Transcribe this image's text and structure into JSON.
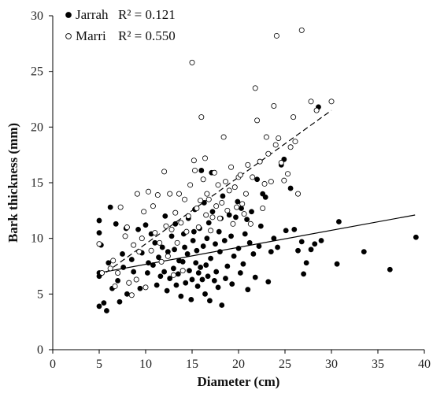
{
  "chart_data": {
    "type": "scatter",
    "xlabel": "Diameter (cm)",
    "ylabel": "Bark thickness (mm)",
    "xlim": [
      0,
      40
    ],
    "ylim": [
      0,
      30
    ],
    "xticks": [
      0,
      5,
      10,
      15,
      20,
      25,
      30,
      35,
      40
    ],
    "yticks": [
      0,
      5,
      10,
      15,
      20,
      25,
      30
    ],
    "grid": false,
    "legend_position": "top-left",
    "series": [
      {
        "name": "Jarrah",
        "r2_label": "R² = 0.121",
        "marker": "filled-circle",
        "color": "#000000",
        "trendline": {
          "style": "solid",
          "x": [
            5,
            39
          ],
          "y": [
            6.9,
            12.1
          ]
        },
        "points": [
          [
            5.0,
            3.9
          ],
          [
            5.0,
            6.6
          ],
          [
            5.0,
            6.9
          ],
          [
            5.2,
            9.4
          ],
          [
            5.0,
            10.5
          ],
          [
            5.0,
            11.6
          ],
          [
            5.5,
            4.2
          ],
          [
            5.8,
            3.5
          ],
          [
            6.0,
            7.8
          ],
          [
            6.2,
            12.8
          ],
          [
            6.4,
            5.5
          ],
          [
            6.8,
            11.3
          ],
          [
            7.0,
            6.2
          ],
          [
            7.2,
            4.3
          ],
          [
            7.5,
            8.6
          ],
          [
            7.6,
            7.4
          ],
          [
            7.9,
            10.9
          ],
          [
            8.0,
            5.0
          ],
          [
            8.2,
            6.0
          ],
          [
            8.5,
            8.1
          ],
          [
            8.7,
            7.0
          ],
          [
            9.0,
            6.3
          ],
          [
            9.2,
            10.8
          ],
          [
            9.4,
            5.5
          ],
          [
            9.6,
            8.7
          ],
          [
            10.0,
            11.2
          ],
          [
            10.2,
            6.9
          ],
          [
            10.3,
            7.8
          ],
          [
            10.6,
            10.4
          ],
          [
            10.8,
            7.6
          ],
          [
            11.0,
            9.6
          ],
          [
            11.2,
            5.8
          ],
          [
            11.4,
            8.3
          ],
          [
            11.6,
            6.6
          ],
          [
            11.8,
            9.2
          ],
          [
            12.0,
            7.0
          ],
          [
            12.1,
            12.0
          ],
          [
            12.3,
            5.3
          ],
          [
            12.4,
            8.8
          ],
          [
            12.6,
            6.4
          ],
          [
            12.8,
            10.2
          ],
          [
            13.0,
            7.3
          ],
          [
            13.1,
            9.0
          ],
          [
            13.2,
            11.3
          ],
          [
            13.3,
            5.8
          ],
          [
            13.5,
            6.8
          ],
          [
            13.6,
            8.0
          ],
          [
            13.8,
            4.8
          ],
          [
            14.0,
            7.9
          ],
          [
            14.1,
            10.4
          ],
          [
            14.2,
            9.2
          ],
          [
            14.3,
            6.0
          ],
          [
            14.5,
            8.6
          ],
          [
            14.6,
            11.8
          ],
          [
            14.7,
            7.1
          ],
          [
            14.9,
            4.5
          ],
          [
            15.0,
            6.3
          ],
          [
            15.1,
            9.8
          ],
          [
            15.2,
            10.6
          ],
          [
            15.3,
            12.6
          ],
          [
            15.4,
            7.8
          ],
          [
            15.5,
            8.9
          ],
          [
            15.6,
            5.7
          ],
          [
            15.7,
            6.9
          ],
          [
            15.8,
            10.9
          ],
          [
            15.9,
            7.4
          ],
          [
            16.0,
            16.1
          ],
          [
            16.1,
            6.3
          ],
          [
            16.2,
            9.3
          ],
          [
            16.3,
            13.2
          ],
          [
            16.4,
            5.0
          ],
          [
            16.5,
            7.6
          ],
          [
            16.6,
            10.0
          ],
          [
            16.7,
            6.6
          ],
          [
            16.8,
            11.4
          ],
          [
            16.9,
            4.4
          ],
          [
            17.0,
            8.2
          ],
          [
            17.1,
            15.9
          ],
          [
            17.2,
            12.4
          ],
          [
            17.4,
            6.2
          ],
          [
            17.5,
            9.5
          ],
          [
            17.6,
            7.0
          ],
          [
            17.8,
            5.6
          ],
          [
            17.9,
            10.6
          ],
          [
            18.0,
            8.8
          ],
          [
            18.1,
            11.8
          ],
          [
            18.2,
            4.0
          ],
          [
            18.3,
            13.8
          ],
          [
            18.5,
            9.8
          ],
          [
            18.6,
            6.4
          ],
          [
            18.8,
            7.5
          ],
          [
            19.0,
            12.1
          ],
          [
            19.2,
            10.2
          ],
          [
            19.3,
            5.9
          ],
          [
            19.5,
            8.4
          ],
          [
            19.7,
            11.9
          ],
          [
            19.9,
            13.3
          ],
          [
            20.0,
            9.1
          ],
          [
            20.2,
            6.9
          ],
          [
            20.3,
            12.7
          ],
          [
            20.5,
            7.7
          ],
          [
            20.7,
            10.4
          ],
          [
            20.9,
            11.7
          ],
          [
            21.0,
            5.4
          ],
          [
            21.2,
            9.6
          ],
          [
            21.4,
            12.4
          ],
          [
            21.6,
            8.6
          ],
          [
            21.8,
            6.5
          ],
          [
            22.0,
            15.3
          ],
          [
            22.2,
            9.3
          ],
          [
            22.4,
            11.1
          ],
          [
            22.6,
            14.0
          ],
          [
            22.9,
            13.7
          ],
          [
            23.2,
            6.1
          ],
          [
            23.5,
            8.8
          ],
          [
            23.8,
            10.0
          ],
          [
            24.2,
            9.2
          ],
          [
            24.6,
            16.6
          ],
          [
            24.9,
            17.1
          ],
          [
            25.1,
            10.7
          ],
          [
            25.6,
            14.5
          ],
          [
            26.0,
            10.8
          ],
          [
            26.4,
            8.9
          ],
          [
            26.8,
            9.7
          ],
          [
            27.0,
            6.8
          ],
          [
            27.3,
            7.8
          ],
          [
            27.8,
            9.0
          ],
          [
            28.2,
            9.5
          ],
          [
            28.6,
            21.8
          ],
          [
            28.9,
            9.8
          ],
          [
            30.6,
            7.7
          ],
          [
            30.8,
            11.5
          ],
          [
            33.5,
            8.8
          ],
          [
            36.3,
            7.2
          ],
          [
            39.1,
            10.1
          ]
        ]
      },
      {
        "name": "Marri",
        "r2_label": "R² = 0.550",
        "marker": "open-circle",
        "color": "#000000",
        "trendline": {
          "style": "dashed",
          "x": [
            5,
            30
          ],
          "y": [
            6.5,
            21.5
          ]
        },
        "points": [
          [
            5.0,
            9.5
          ],
          [
            5.3,
            6.9
          ],
          [
            6.2,
            7.3
          ],
          [
            6.5,
            8.0
          ],
          [
            6.7,
            5.7
          ],
          [
            7.0,
            6.9
          ],
          [
            7.3,
            12.8
          ],
          [
            7.8,
            10.2
          ],
          [
            8.0,
            11.0
          ],
          [
            8.2,
            6.0
          ],
          [
            8.5,
            4.9
          ],
          [
            8.7,
            9.4
          ],
          [
            9.0,
            6.3
          ],
          [
            9.1,
            14.0
          ],
          [
            9.3,
            8.8
          ],
          [
            9.6,
            10.0
          ],
          [
            9.8,
            12.4
          ],
          [
            10.0,
            5.6
          ],
          [
            10.3,
            14.2
          ],
          [
            10.6,
            8.9
          ],
          [
            10.8,
            12.9
          ],
          [
            11.0,
            10.5
          ],
          [
            11.3,
            13.9
          ],
          [
            11.5,
            9.6
          ],
          [
            11.7,
            7.9
          ],
          [
            12.0,
            16.0
          ],
          [
            12.2,
            11.1
          ],
          [
            12.4,
            8.4
          ],
          [
            12.6,
            14.0
          ],
          [
            12.8,
            10.8
          ],
          [
            13.0,
            6.7
          ],
          [
            13.2,
            12.3
          ],
          [
            13.4,
            9.6
          ],
          [
            13.6,
            14.0
          ],
          [
            13.8,
            11.4
          ],
          [
            14.0,
            7.1
          ],
          [
            14.2,
            13.5
          ],
          [
            14.4,
            10.6
          ],
          [
            14.6,
            12.0
          ],
          [
            14.8,
            14.8
          ],
          [
            15.0,
            25.8
          ],
          [
            15.2,
            17.0
          ],
          [
            15.3,
            16.1
          ],
          [
            15.5,
            12.7
          ],
          [
            15.7,
            11.0
          ],
          [
            15.9,
            13.4
          ],
          [
            16.0,
            20.9
          ],
          [
            16.2,
            15.3
          ],
          [
            16.4,
            17.2
          ],
          [
            16.5,
            12.1
          ],
          [
            16.6,
            14.0
          ],
          [
            16.8,
            13.5
          ],
          [
            17.0,
            10.7
          ],
          [
            17.2,
            11.9
          ],
          [
            17.4,
            15.9
          ],
          [
            17.6,
            12.9
          ],
          [
            17.8,
            14.8
          ],
          [
            18.0,
            11.8
          ],
          [
            18.2,
            13.2
          ],
          [
            18.4,
            19.1
          ],
          [
            18.6,
            15.1
          ],
          [
            18.8,
            12.5
          ],
          [
            19.0,
            14.3
          ],
          [
            19.2,
            16.4
          ],
          [
            19.4,
            11.3
          ],
          [
            19.6,
            14.6
          ],
          [
            19.8,
            12.8
          ],
          [
            20.0,
            15.5
          ],
          [
            20.2,
            15.7
          ],
          [
            20.4,
            13.1
          ],
          [
            20.6,
            12.2
          ],
          [
            20.8,
            14.0
          ],
          [
            21.0,
            16.6
          ],
          [
            21.3,
            11.3
          ],
          [
            21.5,
            15.5
          ],
          [
            21.8,
            23.5
          ],
          [
            22.0,
            20.6
          ],
          [
            22.3,
            16.9
          ],
          [
            22.6,
            12.7
          ],
          [
            22.8,
            14.9
          ],
          [
            23.0,
            19.1
          ],
          [
            23.2,
            17.6
          ],
          [
            23.5,
            15.1
          ],
          [
            23.8,
            21.9
          ],
          [
            24.0,
            18.4
          ],
          [
            24.1,
            28.2
          ],
          [
            24.3,
            19.0
          ],
          [
            24.6,
            16.8
          ],
          [
            24.9,
            15.2
          ],
          [
            25.3,
            15.8
          ],
          [
            25.6,
            18.2
          ],
          [
            25.9,
            20.9
          ],
          [
            26.1,
            18.7
          ],
          [
            26.4,
            14.0
          ],
          [
            26.8,
            28.7
          ],
          [
            27.8,
            22.3
          ],
          [
            28.4,
            21.5
          ],
          [
            30.0,
            22.3
          ]
        ]
      }
    ]
  }
}
